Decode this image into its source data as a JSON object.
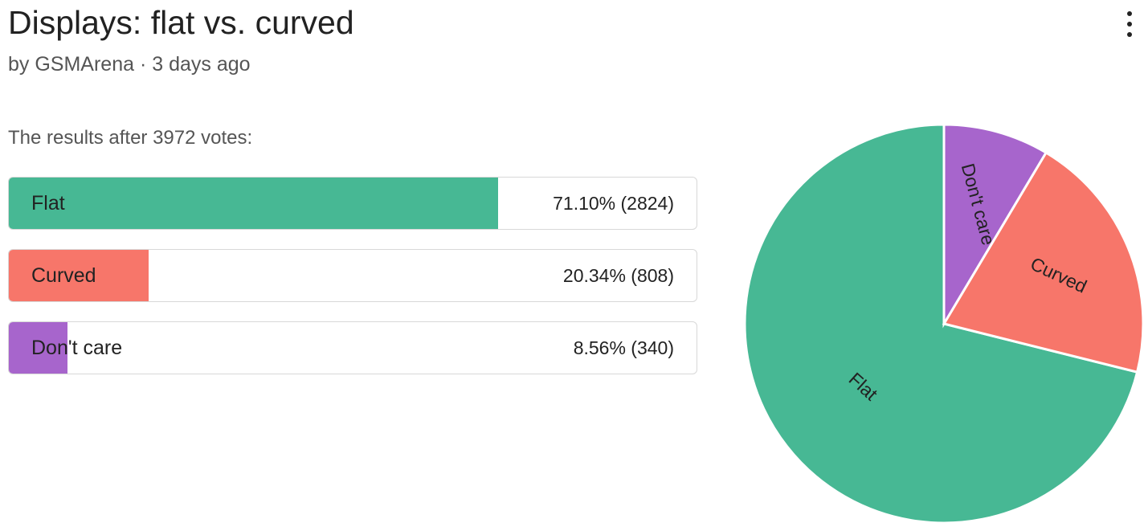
{
  "header": {
    "title": "Displays: flat vs. curved",
    "byline": "by GSMArena · 3 days ago"
  },
  "poll": {
    "summary": "The results after 3972 votes:",
    "options": [
      {
        "label": "Flat",
        "value_text": "71.10% (2824)",
        "percent": 71.1,
        "votes": 2824,
        "color": "#47b894"
      },
      {
        "label": "Curved",
        "value_text": "20.34% (808)",
        "percent": 20.34,
        "votes": 808,
        "color": "#f7766a"
      },
      {
        "label": "Don't care",
        "value_text": "8.56% (340)",
        "percent": 8.56,
        "votes": 340,
        "color": "#a765cc"
      }
    ]
  },
  "chart_data": [
    {
      "type": "bar",
      "orientation": "horizontal",
      "categories": [
        "Flat",
        "Curved",
        "Don't care"
      ],
      "values": [
        71.1,
        20.34,
        8.56
      ],
      "value_labels": [
        "71.10% (2824)",
        "20.34% (808)",
        "8.56% (340)"
      ],
      "xlim": [
        0,
        100
      ],
      "colors": [
        "#47b894",
        "#f7766a",
        "#a765cc"
      ]
    },
    {
      "type": "pie",
      "categories": [
        "Flat",
        "Curved",
        "Don't care"
      ],
      "values": [
        2824,
        808,
        340
      ],
      "colors": [
        "#47b894",
        "#f7766a",
        "#a765cc"
      ],
      "start_angle": "12 o'clock",
      "direction": "counter-clockwise",
      "slice_labels_on_slices": true
    }
  ]
}
